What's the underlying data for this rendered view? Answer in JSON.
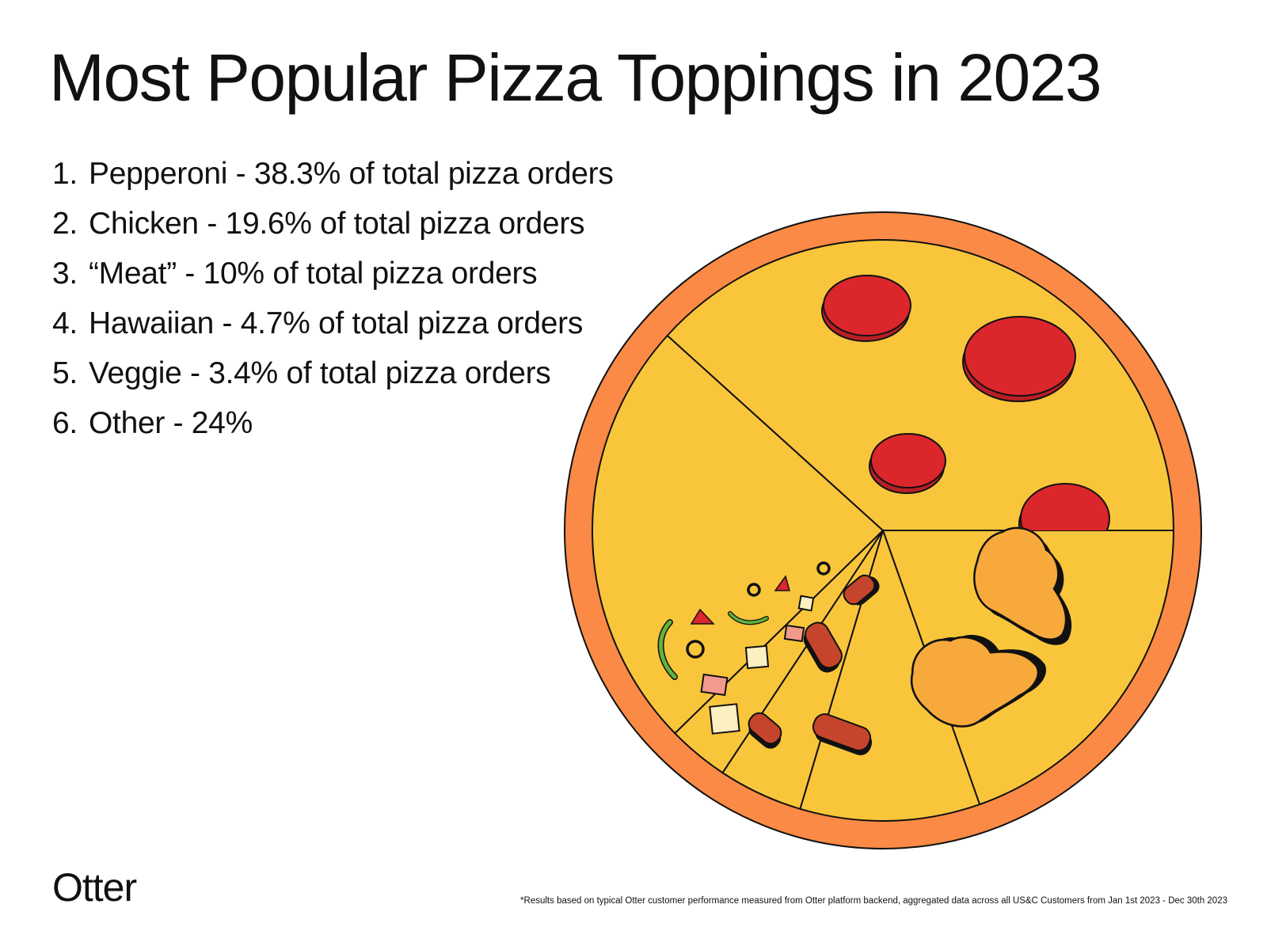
{
  "title": "Most Popular Pizza Toppings in 2023",
  "ranking": [
    {
      "num": "1.",
      "text": "Pepperoni - 38.3% of total pizza orders"
    },
    {
      "num": "2.",
      "text": "Chicken - 19.6% of total pizza orders"
    },
    {
      "num": "3.",
      "text": "“Meat” - 10% of total pizza orders"
    },
    {
      "num": "4.",
      "text": "Hawaiian - 4.7% of total pizza orders"
    },
    {
      "num": "5.",
      "text": "Veggie - 3.4% of total pizza orders"
    },
    {
      "num": "6.",
      "text": "Other - 24%"
    }
  ],
  "logo": "Otter",
  "footnote": "*Results based on typical Otter customer performance measured from Otter platform backend, aggregated data across all US&C Customers from Jan 1st 2023 - Dec 30th 2023",
  "colors": {
    "crust": "#FA8A45",
    "cheese": "#F9C53B",
    "pepperoni": "#DB262C",
    "chicken": "#F8A93C",
    "meat": "#C5452C",
    "ham": "#F39A8F",
    "pineapple": "#FCEFC2",
    "pepper": "#63B33C",
    "outline": "#111111"
  },
  "chart_data": {
    "type": "pie",
    "title": "Most Popular Pizza Toppings in 2023",
    "categories": [
      "Pepperoni",
      "Chicken",
      "“Meat”",
      "Hawaiian",
      "Veggie",
      "Other"
    ],
    "values": [
      38.3,
      19.6,
      10,
      4.7,
      3.4,
      24
    ],
    "unit": "%"
  }
}
